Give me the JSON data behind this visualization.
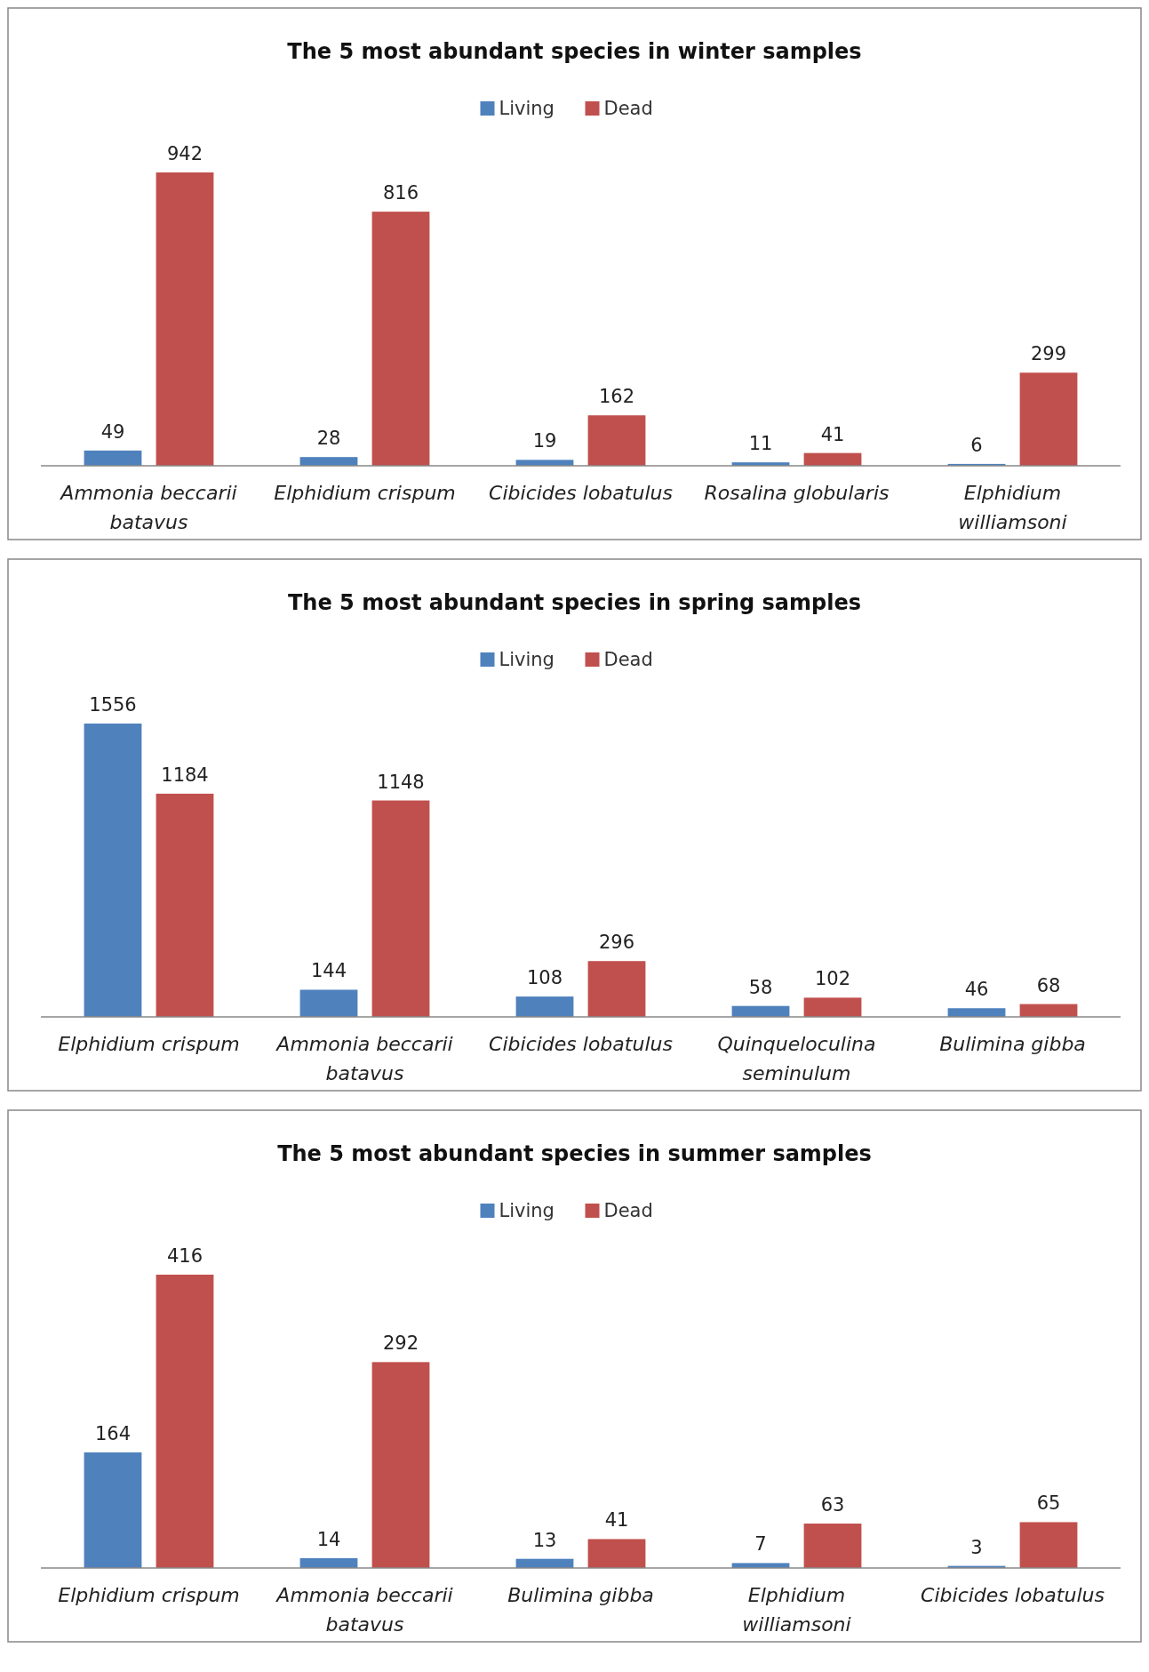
{
  "chart_data": [
    {
      "type": "bar",
      "title": "The 5 most abundant  species in winter samples",
      "categories": [
        "Ammonia beccarii batavus",
        "Elphidium crispum",
        "Cibicides lobatulus",
        "Rosalina globularis",
        "Elphidium williamsoni"
      ],
      "series": [
        {
          "name": "Living",
          "color": "#4f81bd",
          "values": [
            49,
            28,
            19,
            11,
            6
          ]
        },
        {
          "name": "Dead",
          "color": "#c0504d",
          "values": [
            942,
            816,
            162,
            41,
            299
          ]
        }
      ],
      "data_labels": true,
      "legend": "top"
    },
    {
      "type": "bar",
      "title": "The 5 most abundant  species in spring samples",
      "categories": [
        "Elphidium crispum",
        "Ammonia beccarii batavus",
        "Cibicides lobatulus",
        "Quinqueloculina seminulum",
        "Bulimina gibba"
      ],
      "series": [
        {
          "name": "Living",
          "color": "#4f81bd",
          "values": [
            1556,
            144,
            108,
            58,
            46
          ]
        },
        {
          "name": "Dead",
          "color": "#c0504d",
          "values": [
            1184,
            1148,
            296,
            102,
            68
          ]
        }
      ],
      "data_labels": true,
      "legend": "top"
    },
    {
      "type": "bar",
      "title": "The 5 most abundant  species in summer samples",
      "categories": [
        "Elphidium crispum",
        "Ammonia beccarii batavus",
        "Bulimina gibba",
        "Elphidium williamsoni",
        "Cibicides lobatulus"
      ],
      "series": [
        {
          "name": "Living",
          "color": "#4f81bd",
          "values": [
            164,
            14,
            13,
            7,
            3
          ]
        },
        {
          "name": "Dead",
          "color": "#c0504d",
          "values": [
            416,
            292,
            41,
            63,
            65
          ]
        }
      ],
      "data_labels": true,
      "legend": "top"
    }
  ]
}
